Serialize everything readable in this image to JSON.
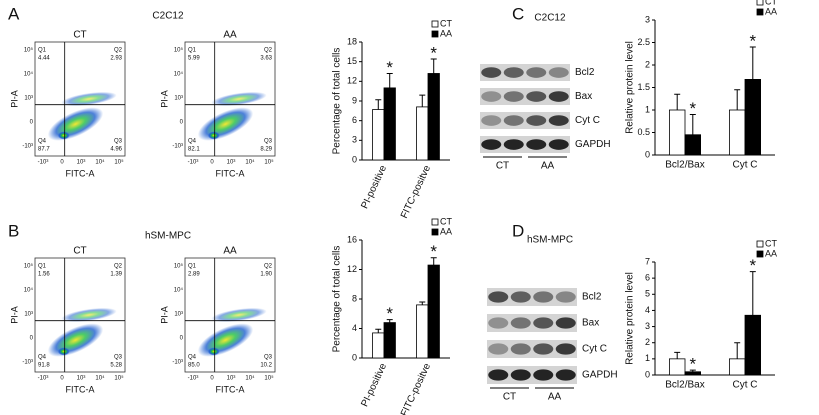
{
  "panel_labels": [
    "A",
    "B",
    "C",
    "D"
  ],
  "panel_titles": [
    "C2C12",
    "hSM-MPC",
    "C2C12",
    "hSM-MPC"
  ],
  "flow": {
    "x_label": "FITC-A",
    "y_label": "PI-A",
    "quadrant_names": [
      "Q1",
      "Q2",
      "Q3",
      "Q4"
    ],
    "x_ticks": [
      "-10³",
      "0",
      "10³",
      "10⁴",
      "10⁵"
    ],
    "y_ticks": [
      "10⁵",
      "10⁴",
      "10³",
      "0",
      "-10³"
    ],
    "plots": [
      {
        "label": "CT",
        "quadrants": [
          "4.44",
          "2.93",
          "4.96",
          "87.7"
        ]
      },
      {
        "label": "AA",
        "quadrants": [
          "5.99",
          "3.63",
          "8.29",
          "82.1"
        ]
      },
      {
        "label": "CT",
        "quadrants": [
          "1.56",
          "1.39",
          "5.28",
          "91.8"
        ]
      },
      {
        "label": "AA",
        "quadrants": [
          "2.89",
          "1.90",
          "10.2",
          "85.0"
        ]
      }
    ]
  },
  "blots": {
    "proteins": [
      "Bcl2",
      "Bax",
      "Cyt C",
      "GAPDH"
    ],
    "groups": [
      "CT",
      "AA"
    ]
  },
  "chart_data": [
    {
      "type": "bar",
      "y_label": "Percentage of total cells",
      "categories": [
        "PI-positive",
        "FITC-positve"
      ],
      "series": [
        {
          "name": "CT",
          "color": "#ffffff",
          "values": [
            7.7,
            8.1
          ],
          "errors": [
            1.5,
            1.8
          ]
        },
        {
          "name": "AA",
          "color": "#000000",
          "values": [
            11.0,
            13.2
          ],
          "errors": [
            2.2,
            2.2
          ],
          "markers": [
            "*",
            "*"
          ]
        }
      ],
      "ylim": [
        0,
        18
      ],
      "yticks": [
        0,
        3,
        6,
        9,
        12,
        15,
        18
      ]
    },
    {
      "type": "bar",
      "y_label": "Percentage of total cells",
      "categories": [
        "PI-positive",
        "FITC-positve"
      ],
      "series": [
        {
          "name": "CT",
          "color": "#ffffff",
          "values": [
            3.4,
            7.2
          ],
          "errors": [
            0.5,
            0.4
          ]
        },
        {
          "name": "AA",
          "color": "#000000",
          "values": [
            4.8,
            12.6
          ],
          "errors": [
            0.4,
            1.0
          ],
          "markers": [
            "*",
            "*"
          ]
        }
      ],
      "ylim": [
        0,
        16
      ],
      "yticks": [
        0,
        4,
        8,
        12,
        16
      ]
    },
    {
      "type": "bar",
      "y_label": "Relative protein level",
      "categories": [
        "Bcl2/Bax",
        "Cyt C"
      ],
      "series": [
        {
          "name": "CT",
          "color": "#ffffff",
          "values": [
            1.0,
            1.0
          ],
          "errors": [
            0.35,
            0.45
          ]
        },
        {
          "name": "AA",
          "color": "#000000",
          "values": [
            0.45,
            1.68
          ],
          "errors": [
            0.45,
            0.72
          ],
          "markers": [
            "*",
            "*"
          ]
        }
      ],
      "ylim": [
        0,
        3
      ],
      "yticks": [
        0,
        0.5,
        1,
        1.5,
        2,
        2.5,
        3
      ]
    },
    {
      "type": "bar",
      "y_label": "Relative protein level",
      "categories": [
        "Bcl2/Bax",
        "Cyt C"
      ],
      "series": [
        {
          "name": "CT",
          "color": "#ffffff",
          "values": [
            1.0,
            1.0
          ],
          "errors": [
            0.4,
            1.0
          ]
        },
        {
          "name": "AA",
          "color": "#000000",
          "values": [
            0.2,
            3.7
          ],
          "errors": [
            0.1,
            2.7
          ],
          "markers": [
            "*",
            "*"
          ]
        }
      ],
      "ylim": [
        0,
        7
      ],
      "yticks": [
        0,
        1,
        2,
        3,
        4,
        5,
        6,
        7
      ]
    }
  ]
}
